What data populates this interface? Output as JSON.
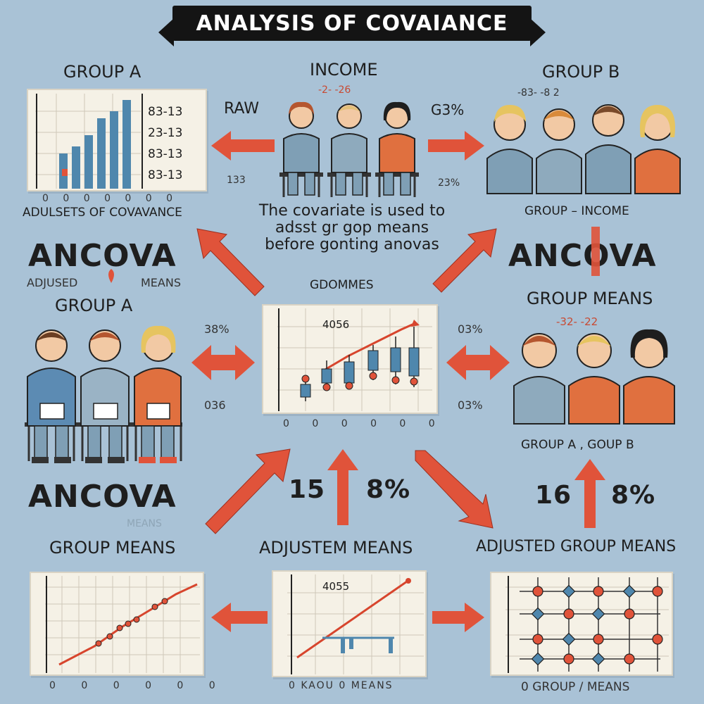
{
  "title": "ANALYSIS OF COVAIANCE",
  "colors": {
    "background": "#a9c2d6",
    "accent_red": "#e0533a",
    "bar_blue": "#4f87ad",
    "panel": "#f5f1e6",
    "banner": "#141414"
  },
  "top": {
    "group_a_label": "GROUP A",
    "income_label": "INCOME",
    "income_numbers": "-2- -26",
    "group_b_label": "GROUP B",
    "group_b_numbers": "-83- -8 2",
    "raw_label": "RAW",
    "raw_sub": "133",
    "pct_right": "G3%",
    "pct_right_sub": "23%",
    "table_values": [
      "83-13",
      "23-13",
      "83-13",
      "83-13"
    ],
    "axis_ticks": "0 0 0 0 0 0 0",
    "caption_left": "ADULSETS OF COVAVANCE",
    "caption_right": "GROUP – INCOME"
  },
  "center_note": "The covariate is used to adsst gr gop means before gonting anovas",
  "middle": {
    "ancova_left": "ANCOVA",
    "adjusted_means_left_1": "ADJUSED",
    "adjusted_means_left_2": "MEANS",
    "group_a_label": "GROUP A",
    "center_title": "GDOMMES",
    "center_value": "4056",
    "pct_left_top": "38%",
    "pct_left_bottom": "036",
    "pct_right_top": "03%",
    "pct_right_bottom": "03%",
    "ancova_right": "ANCOVA",
    "group_means_right": "GROUP MEANS",
    "group_means_numbers": "-32- -22",
    "caption_right": "GROUP A , GOUP B",
    "center_axis": "0 0 0 0 0 0"
  },
  "bottom": {
    "ancova_left": "ANCOVA",
    "faded_means": "MEANS",
    "stat_left_a": "15",
    "stat_left_b": "8%",
    "stat_right_a": "16",
    "stat_right_b": "8%",
    "group_means_label": "GROUP MEANS",
    "adjustem_label": "ADJUSTEM MEANS",
    "adjusted_group_label": "ADJUSTED GROUP MEANS",
    "center_value": "4055",
    "axis_left": "0 0 0 0 0 0",
    "axis_center": "0 KAOU 0 MEANS",
    "axis_right": "0 GROUP / MEANS"
  }
}
